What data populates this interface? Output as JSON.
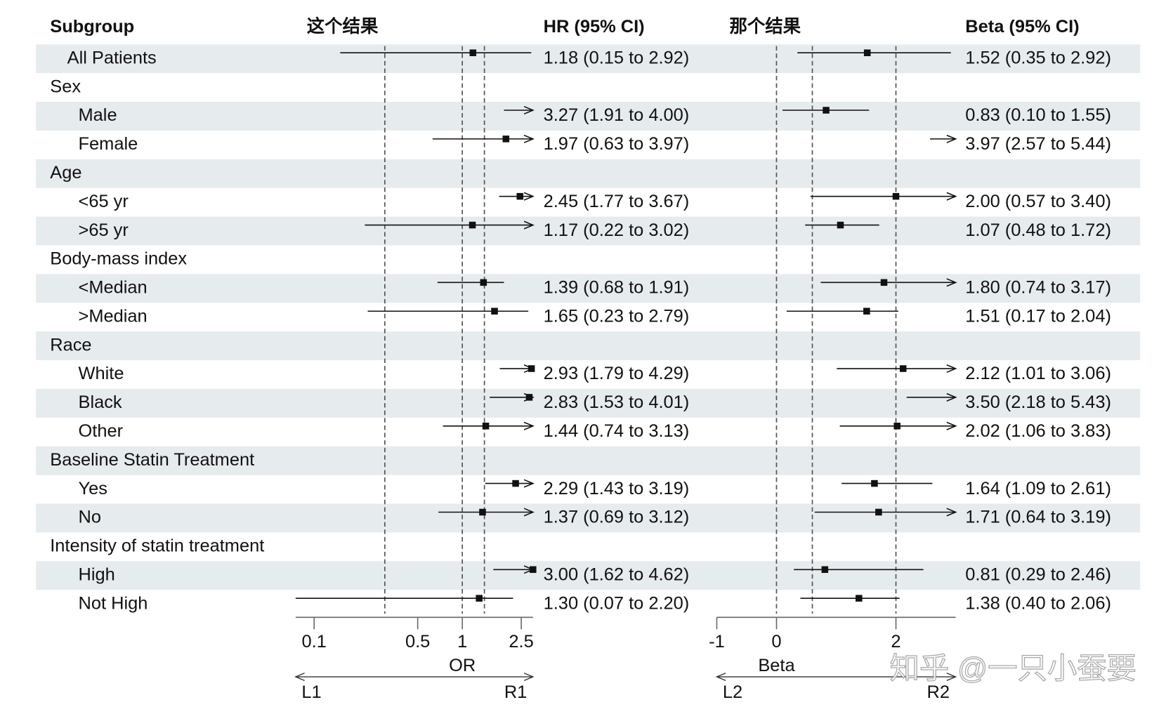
{
  "chart_data": {
    "type": "forest",
    "header": "Subgroup",
    "categories": [
      "All Patients",
      "Sex",
      "Male",
      "Female",
      "Age",
      "<65 yr",
      ">65 yr",
      "Body-mass index",
      "<Median",
      ">Median",
      "Race",
      "White",
      "Black",
      "Other",
      "Baseline Statin Treatment",
      "Yes",
      "No",
      "Intensity of statin treatment",
      "High",
      "Not High"
    ],
    "shade": "#e6ebee",
    "panels": [
      {
        "title": "这个结果",
        "ci_header": "HR (95% CI)",
        "xlabel": "OR",
        "left_label": "L1",
        "right_label": "R1",
        "log": true,
        "xlim": [
          0.075,
          3
        ],
        "xticks": [
          0.1,
          0.5,
          1,
          2.5
        ],
        "ref_lines": [
          0.3,
          1,
          1.41
        ],
        "values": [
          1.18,
          null,
          3.27,
          1.97,
          null,
          2.45,
          1.17,
          null,
          1.39,
          1.65,
          null,
          2.93,
          2.83,
          1.44,
          null,
          2.29,
          1.37,
          null,
          3.0,
          1.3
        ],
        "lower": [
          0.15,
          null,
          1.91,
          0.63,
          null,
          1.77,
          0.22,
          null,
          0.68,
          0.23,
          null,
          1.79,
          1.53,
          0.74,
          null,
          1.43,
          0.69,
          null,
          1.62,
          0.07
        ],
        "upper": [
          2.92,
          null,
          4.0,
          3.97,
          null,
          3.67,
          3.02,
          null,
          1.91,
          2.79,
          null,
          4.29,
          4.01,
          3.13,
          null,
          3.19,
          3.12,
          null,
          4.62,
          2.2
        ],
        "ci_labels": [
          "1.18 (0.15 to 2.92)",
          null,
          "3.27 (1.91 to 4.00)",
          "1.97 (0.63 to 3.97)",
          null,
          "2.45 (1.77 to 3.67)",
          "1.17 (0.22 to 3.02)",
          null,
          "1.39 (0.68 to 1.91)",
          "1.65 (0.23 to 2.79)",
          null,
          "2.93 (1.79 to 4.29)",
          "2.83 (1.53 to 4.01)",
          "1.44 (0.74 to 3.13)",
          null,
          "2.29 (1.43 to 3.19)",
          "1.37 (0.69 to 3.12)",
          null,
          "3.00 (1.62 to 4.62)",
          "1.30 (0.07 to 2.20)"
        ]
      },
      {
        "title": "那个结果",
        "ci_header": "Beta (95% CI)",
        "xlabel": "Beta",
        "left_label": "L2",
        "right_label": "R2",
        "log": false,
        "xlim": [
          -1,
          3
        ],
        "xticks": [
          -1,
          0,
          2
        ],
        "ref_lines": [
          0,
          0.6,
          2
        ],
        "values": [
          1.52,
          null,
          0.83,
          3.97,
          null,
          2.0,
          1.07,
          null,
          1.8,
          1.51,
          null,
          2.12,
          3.5,
          2.02,
          null,
          1.64,
          1.71,
          null,
          0.81,
          1.38
        ],
        "lower": [
          0.35,
          null,
          0.1,
          2.57,
          null,
          0.57,
          0.48,
          null,
          0.74,
          0.17,
          null,
          1.01,
          2.18,
          1.06,
          null,
          1.09,
          0.64,
          null,
          0.29,
          0.4
        ],
        "upper": [
          2.92,
          null,
          1.55,
          5.44,
          null,
          3.4,
          1.72,
          null,
          3.17,
          2.04,
          null,
          3.06,
          5.43,
          3.83,
          null,
          2.61,
          3.19,
          null,
          2.46,
          2.06
        ],
        "ci_labels": [
          "1.52 (0.35 to 2.92)",
          null,
          "0.83 (0.10 to 1.55)",
          "3.97 (2.57 to 5.44)",
          null,
          "2.00 (0.57 to 3.40)",
          "1.07 (0.48 to 1.72)",
          null,
          "1.80 (0.74 to 3.17)",
          "1.51 (0.17 to 2.04)",
          null,
          "2.12 (1.01 to 3.06)",
          "3.50 (2.18 to 5.43)",
          "2.02 (1.06 to 3.83)",
          null,
          "1.64 (1.09 to 2.61)",
          "1.71 (0.64 to 3.19)",
          null,
          "0.81 (0.29 to 2.46)",
          "1.38 (0.40 to 2.06)"
        ]
      }
    ],
    "watermark": "知乎 @一只小蚕要"
  }
}
